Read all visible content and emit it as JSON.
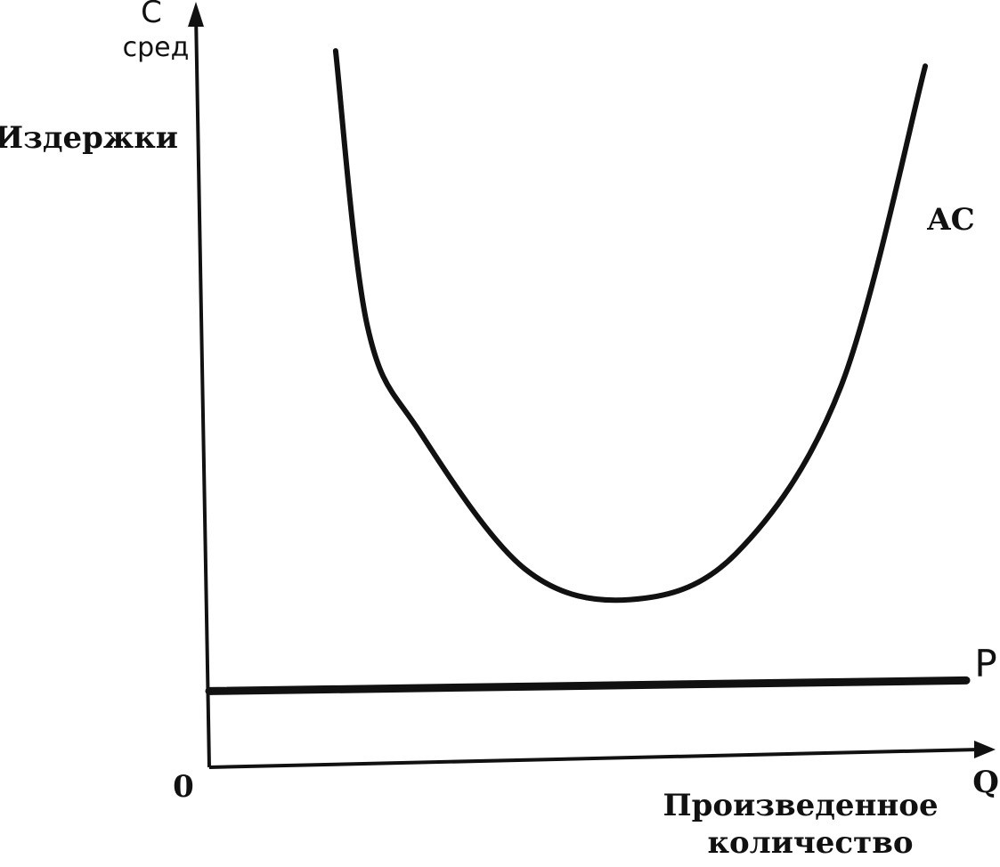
{
  "chart_data": {
    "type": "line",
    "title": "",
    "ylabel": "Издержки",
    "xlabel": "Произведенное количество",
    "y_axis_symbol": "C",
    "y_axis_symbol_sub": "сред",
    "x_axis_symbol": "Q",
    "origin_label": "0",
    "series": [
      {
        "name": "AC",
        "x": [
          1.2,
          1.5,
          2.0,
          3.0,
          4.0,
          5.0,
          6.0,
          6.8
        ],
        "y": [
          9.4,
          5.8,
          4.4,
          2.6,
          2.2,
          2.8,
          5.0,
          9.2
        ]
      },
      {
        "name": "P",
        "x": [
          0.0,
          7.4
        ],
        "y": [
          1.0,
          1.0
        ]
      }
    ],
    "xlim": [
      0,
      7.4
    ],
    "ylim": [
      0,
      9.6
    ],
    "grid": false,
    "legend": "none"
  }
}
